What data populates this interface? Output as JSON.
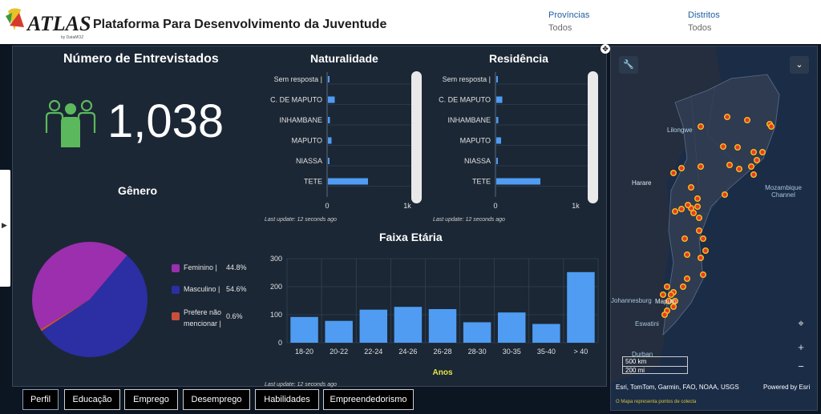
{
  "header": {
    "logo_text": "ATLAS",
    "logo_sub": "by DataMOZ",
    "title": "Plataforma Para Desenvolvimento da Juventude",
    "filters": [
      {
        "label": "Províncias",
        "value": "Todos"
      },
      {
        "label": "Distritos",
        "value": "Todos"
      }
    ]
  },
  "count_panel": {
    "title": "Número de Entrevistados",
    "value": "1,038",
    "icon": "people-group-icon",
    "icon_color": "#5cb85c"
  },
  "genero": {
    "title": "Gênero",
    "chart_data": {
      "type": "pie",
      "slices": [
        {
          "label": "Feminino |",
          "value": 44.8,
          "display": "44.8%",
          "color": "#9b2fae"
        },
        {
          "label": "Masculino |",
          "value": 54.6,
          "display": "54.6%",
          "color": "#2b2fa3"
        },
        {
          "label": "Prefere não mencionar |",
          "value": 0.6,
          "display": "0.6%",
          "color": "#c94f3a"
        }
      ]
    }
  },
  "naturalidade": {
    "title": "Naturalidade",
    "last_update": "Last update: 12 seconds ago",
    "chart_data": {
      "type": "bar",
      "orientation": "horizontal",
      "categories": [
        "Sem resposta |",
        "C. DE MAPUTO",
        "INHAMBANE",
        "MAPUTO",
        "NIASSA",
        "TETE"
      ],
      "values": [
        12,
        85,
        25,
        45,
        8,
        500
      ],
      "xlim": [
        0,
        1000
      ],
      "ticks": [
        "0",
        "1k"
      ],
      "color": "#4f9cf2"
    }
  },
  "residencia": {
    "title": "Residência",
    "last_update": "Last update: 12 seconds ago",
    "chart_data": {
      "type": "bar",
      "orientation": "horizontal",
      "categories": [
        "Sem resposta |",
        "C. DE MAPUTO",
        "INHAMBANE",
        "MAPUTO",
        "NIASSA",
        "TETE"
      ],
      "values": [
        12,
        75,
        25,
        60,
        10,
        550
      ],
      "xlim": [
        0,
        1000
      ],
      "ticks": [
        "0",
        "1k"
      ],
      "color": "#4f9cf2"
    }
  },
  "faixa": {
    "title": "Faixa Etária",
    "last_update": "Last update: 12 seconds ago",
    "chart_data": {
      "type": "bar",
      "categories": [
        "18-20",
        "20-22",
        "22-24",
        "24-26",
        "26-28",
        "28-30",
        "30-35",
        "35-40",
        "> 40"
      ],
      "values": [
        92,
        78,
        118,
        128,
        120,
        73,
        108,
        67,
        252
      ],
      "xlabel": "Anos",
      "ylim": [
        0,
        300
      ],
      "yticks": [
        0,
        100,
        200,
        300
      ],
      "color": "#4f9cf2",
      "xlabel_color": "#e7e34a"
    }
  },
  "map": {
    "labels": [
      "Lilongwe",
      "Harare",
      "Mozambique Channel",
      "Maputo",
      "Durban",
      "Eswatini",
      "Johannesburg"
    ],
    "scale": [
      "500 km",
      "200 mi"
    ],
    "attribution": "Esri, TomTom, Garmin, FAO, NOAA, USGS",
    "powered": "Powered by Esri",
    "note": "O Mapa representa pontos de colecta",
    "buttons": [
      "+",
      "−"
    ]
  },
  "tabs": [
    "Perfil",
    "Educação",
    "Emprego",
    "Desemprego",
    "Habilidades",
    "Empreendedorismo"
  ],
  "active_tab": "Perfil"
}
